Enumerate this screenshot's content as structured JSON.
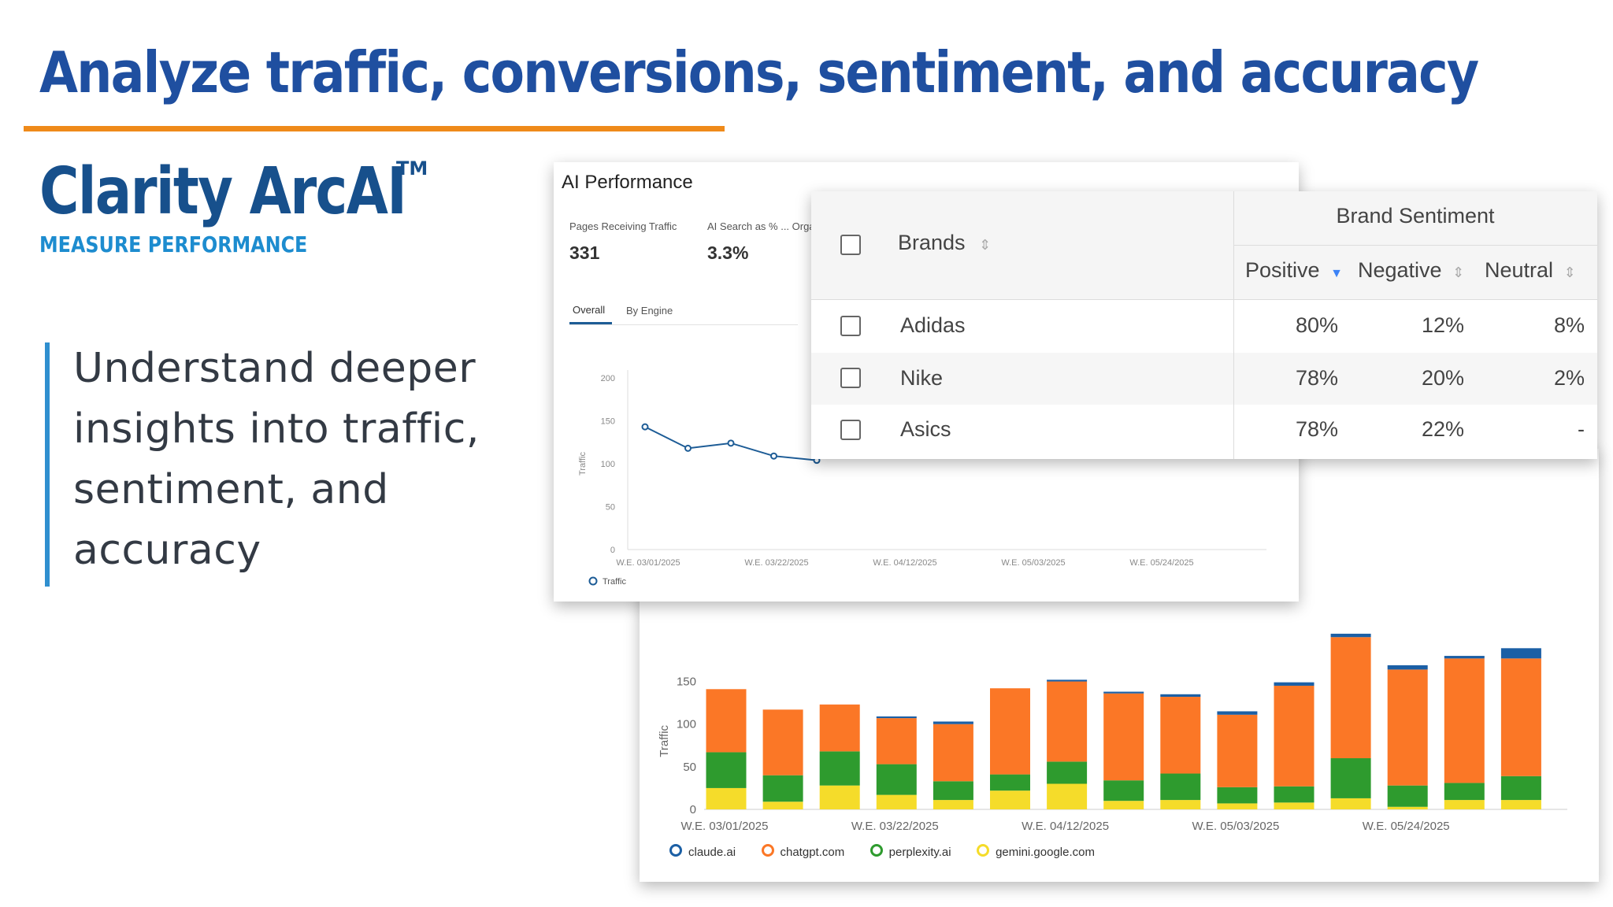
{
  "slide": {
    "title": "Analyze traffic, conversions, sentiment, and accuracy",
    "brand_name": "Clarity ArcAI",
    "brand_tm": "TM",
    "brand_subtitle": "MEASURE PERFORMANCE",
    "bullet_text": "Understand deeper insights into traffic, sentiment, and accuracy"
  },
  "colors": {
    "title_blue": "#1f4fa0",
    "accent_orange": "#ef8a1a",
    "bullet_bar": "#2f8fcf",
    "line_blue": "#1d5c96",
    "claude": "#1b5fa5",
    "chatgpt": "#fb7726",
    "perplexity": "#2e9b2e",
    "gemini": "#f5dc2a"
  },
  "ai_performance": {
    "title": "AI Performance",
    "metrics": [
      {
        "label": "Pages Receiving Traffic",
        "value": "331"
      },
      {
        "label": "AI Search as % ... Orga",
        "value": "3.3%"
      }
    ],
    "tabs": [
      "Overall",
      "By Engine"
    ],
    "active_tab": "Overall",
    "legend": "Traffic"
  },
  "brand_sentiment": {
    "group_header": "Brand Sentiment",
    "columns": [
      "Brands",
      "Positive",
      "Negative",
      "Neutral"
    ],
    "rows": [
      {
        "brand": "Adidas",
        "positive": "80%",
        "negative": "12%",
        "neutral": "8%"
      },
      {
        "brand": "Nike",
        "positive": "78%",
        "negative": "20%",
        "neutral": "2%"
      },
      {
        "brand": "Asics",
        "positive": "78%",
        "negative": "22%",
        "neutral": "-"
      }
    ]
  },
  "chart_data": [
    {
      "type": "line",
      "ylabel": "Traffic",
      "ylim": [
        0,
        200
      ],
      "yticks": [
        "0",
        "50",
        "100",
        "150",
        "200"
      ],
      "xticks": [
        "W.E. 03/01/2025",
        "W.E. 03/22/2025",
        "W.E. 04/12/2025",
        "W.E. 05/03/2025",
        "W.E. 05/24/2025"
      ],
      "series": [
        {
          "name": "Traffic",
          "values": [
            143,
            118,
            124,
            109,
            104
          ]
        }
      ],
      "legend": "bottom-left"
    },
    {
      "type": "bar",
      "stacked": true,
      "ylabel": "Traffic",
      "ylim": [
        0,
        190
      ],
      "yticks": [
        "0",
        "50",
        "100",
        "150"
      ],
      "xticks": [
        "W.E. 03/01/2025",
        "W.E. 03/22/2025",
        "W.E. 04/12/2025",
        "W.E. 05/03/2025",
        "W.E. 05/24/2025"
      ],
      "series": [
        {
          "name": "gemini.google.com",
          "values": [
            25,
            9,
            28,
            17,
            11,
            22,
            30,
            10,
            11,
            7,
            8,
            13,
            3,
            11,
            11
          ]
        },
        {
          "name": "perplexity.ai",
          "values": [
            42,
            31,
            40,
            36,
            22,
            19,
            26,
            24,
            31,
            19,
            19,
            47,
            25,
            20,
            28
          ]
        },
        {
          "name": "chatgpt.com",
          "values": [
            74,
            77,
            55,
            54,
            67,
            101,
            94,
            102,
            90,
            85,
            118,
            142,
            136,
            146,
            138
          ]
        },
        {
          "name": "claude.ai",
          "values": [
            0,
            0,
            0,
            2,
            3,
            0,
            2,
            2,
            3,
            4,
            4,
            4,
            5,
            3,
            12
          ]
        }
      ],
      "legend_order": [
        "claude.ai",
        "chatgpt.com",
        "perplexity.ai",
        "gemini.google.com"
      ],
      "legend": "bottom-left"
    }
  ]
}
